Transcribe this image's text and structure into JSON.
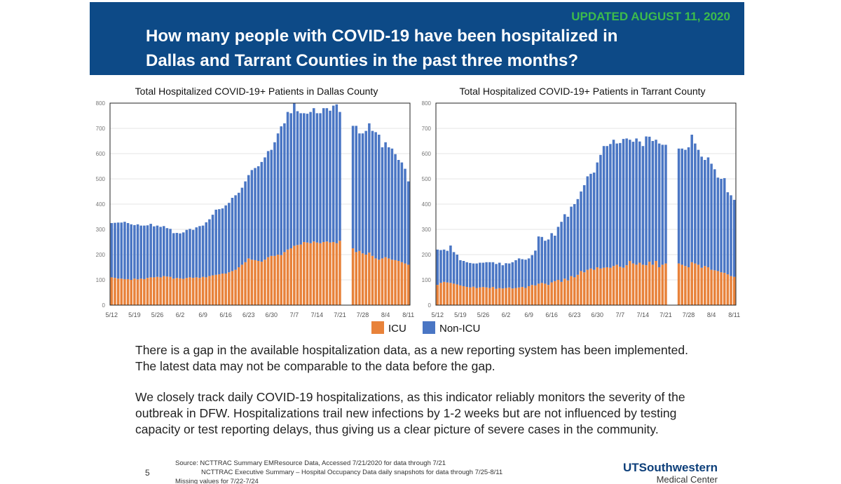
{
  "header": {
    "updated": "UPDATED AUGUST 11, 2020",
    "title": [
      "How many people with COVID-19 have been hospitalized in",
      "Dallas and Tarrant Counties in the past three months?"
    ]
  },
  "chart_data": [
    {
      "type": "bar",
      "stacked": true,
      "title": "Total Hospitalized COVID-19+ Patients in Dallas County",
      "grid": true,
      "categories": [
        "5/12",
        null,
        null,
        null,
        null,
        null,
        null,
        "5/19",
        null,
        null,
        null,
        null,
        null,
        null,
        "5/26",
        null,
        null,
        null,
        null,
        null,
        null,
        "6/2",
        null,
        null,
        null,
        null,
        null,
        null,
        "6/9",
        null,
        null,
        null,
        null,
        null,
        null,
        "6/16",
        null,
        null,
        null,
        null,
        null,
        null,
        "6/23",
        null,
        null,
        null,
        null,
        null,
        null,
        "6/30",
        null,
        null,
        null,
        null,
        null,
        null,
        "7/7",
        null,
        null,
        null,
        null,
        null,
        null,
        "7/14",
        null,
        null,
        null,
        null,
        null,
        null,
        "7/21",
        null,
        null,
        null,
        null,
        null,
        null,
        "7/28",
        null,
        null,
        null,
        null,
        null,
        null,
        "8/4",
        null,
        null,
        null,
        null,
        null,
        null,
        "8/11"
      ],
      "ylim": [
        0,
        800
      ],
      "yticks": [
        0,
        100,
        200,
        300,
        400,
        500,
        600,
        700,
        800
      ],
      "series": [
        {
          "name": "ICU",
          "color": "#e8823a",
          "values": [
            110,
            108,
            105,
            105,
            103,
            103,
            100,
            105,
            102,
            105,
            103,
            108,
            110,
            110,
            112,
            110,
            115,
            113,
            112,
            105,
            108,
            106,
            104,
            108,
            110,
            108,
            110,
            108,
            112,
            110,
            115,
            118,
            120,
            122,
            125,
            125,
            130,
            135,
            140,
            150,
            160,
            170,
            185,
            180,
            178,
            175,
            172,
            180,
            190,
            195,
            195,
            200,
            198,
            210,
            220,
            225,
            235,
            238,
            240,
            250,
            248,
            245,
            252,
            248,
            245,
            250,
            252,
            248,
            250,
            245,
            255,
            null,
            null,
            null,
            225,
            210,
            215,
            205,
            200,
            208,
            195,
            185,
            180,
            185,
            190,
            185,
            180,
            178,
            175,
            170,
            165,
            160
          ]
        },
        {
          "name": "Non-ICU",
          "color": "#4a76c4",
          "values": [
            215,
            218,
            222,
            222,
            227,
            222,
            220,
            212,
            218,
            210,
            212,
            208,
            212,
            202,
            203,
            200,
            198,
            192,
            190,
            180,
            178,
            178,
            184,
            190,
            192,
            190,
            198,
            205,
            203,
            218,
            225,
            240,
            258,
            258,
            258,
            270,
            275,
            290,
            295,
            295,
            305,
            320,
            330,
            355,
            365,
            375,
            395,
            405,
            420,
            420,
            450,
            480,
            510,
            510,
            545,
            535,
            565,
            530,
            520,
            510,
            510,
            520,
            528,
            512,
            515,
            530,
            528,
            522,
            540,
            550,
            510,
            null,
            null,
            null,
            485,
            500,
            465,
            475,
            490,
            512,
            495,
            500,
            495,
            440,
            455,
            440,
            440,
            420,
            400,
            395,
            375,
            330
          ]
        }
      ]
    },
    {
      "type": "bar",
      "stacked": true,
      "title": "Total Hospitalized COVID-19+ Patients in Tarrant County",
      "grid": true,
      "categories": [
        "5/12",
        null,
        null,
        null,
        null,
        null,
        null,
        "5/19",
        null,
        null,
        null,
        null,
        null,
        null,
        "5/26",
        null,
        null,
        null,
        null,
        null,
        null,
        "6/2",
        null,
        null,
        null,
        null,
        null,
        null,
        "6/9",
        null,
        null,
        null,
        null,
        null,
        null,
        "6/16",
        null,
        null,
        null,
        null,
        null,
        null,
        "6/23",
        null,
        null,
        null,
        null,
        null,
        null,
        "6/30",
        null,
        null,
        null,
        null,
        null,
        null,
        "7/7",
        null,
        null,
        null,
        null,
        null,
        null,
        "7/14",
        null,
        null,
        null,
        null,
        null,
        null,
        "7/21",
        null,
        null,
        null,
        null,
        null,
        null,
        "7/28",
        null,
        null,
        null,
        null,
        null,
        null,
        "8/4",
        null,
        null,
        null,
        null,
        null,
        null,
        "8/11"
      ],
      "ylim": [
        0,
        800
      ],
      "yticks": [
        0,
        100,
        200,
        300,
        400,
        500,
        600,
        700,
        800
      ],
      "series": [
        {
          "color": "#e8823a",
          "values": [
            80,
            88,
            92,
            90,
            88,
            85,
            82,
            78,
            75,
            72,
            70,
            73,
            68,
            70,
            72,
            70,
            68,
            72,
            65,
            68,
            66,
            68,
            70,
            66,
            68,
            70,
            72,
            68,
            75,
            80,
            78,
            85,
            88,
            85,
            80,
            90,
            95,
            100,
            92,
            105,
            98,
            115,
            110,
            120,
            135,
            130,
            140,
            145,
            140,
            150,
            145,
            148,
            150,
            148,
            155,
            160,
            152,
            148,
            158,
            175,
            165,
            160,
            168,
            160,
            158,
            172,
            160,
            175,
            150,
            160,
            165,
            null,
            null,
            null,
            165,
            160,
            155,
            150,
            170,
            165,
            160,
            148,
            155,
            150,
            140,
            138,
            135,
            130,
            128,
            122,
            115,
            112
          ]
        },
        {
          "color": "#4a76c4",
          "values": [
            140,
            130,
            128,
            125,
            148,
            125,
            118,
            100,
            100,
            98,
            97,
            92,
            97,
            98,
            96,
            100,
            102,
            98,
            98,
            100,
            92,
            98,
            95,
            104,
            110,
            115,
            110,
            112,
            110,
            118,
            138,
            187,
            182,
            170,
            180,
            195,
            180,
            210,
            238,
            255,
            252,
            275,
            290,
            300,
            315,
            345,
            370,
            375,
            385,
            415,
            450,
            482,
            480,
            490,
            500,
            480,
            490,
            510,
            502,
            480,
            482,
            500,
            480,
            470,
            510,
            495,
            490,
            480,
            490,
            475,
            470,
            null,
            null,
            null,
            455,
            460,
            460,
            475,
            505,
            475,
            455,
            440,
            420,
            435,
            420,
            400,
            370,
            370,
            375,
            325,
            320,
            305
          ]
        }
      ]
    }
  ],
  "paragraphs": [
    [
      "There is a gap in the available hospitalization data, as a new reporting system has been implemented.",
      "The latest data may not be comparable to the data before the gap."
    ],
    [
      "We closely track daily COVID-19 hospitalizations, as this indicator reliably monitors the severity of the",
      "outbreak in DFW. Hospitalizations trail new infections by 1-2 weeks but are not influenced by testing",
      "capacity or test reporting delays, thus giving us a clear picture of severe cases in the community."
    ]
  ],
  "footer": {
    "page_number": "5",
    "source": [
      "Source: NCTTRAC Summary EMResource Data, Accessed 7/21/2020 for data through 7/21",
      "NCTTRAC Executive Summary – Hospital Occupancy Data daily snapshots for data through 7/25-8/11",
      "Missing values for 7/22-7/24"
    ],
    "logo": [
      "UTSouthwestern",
      "Medical Center"
    ]
  }
}
